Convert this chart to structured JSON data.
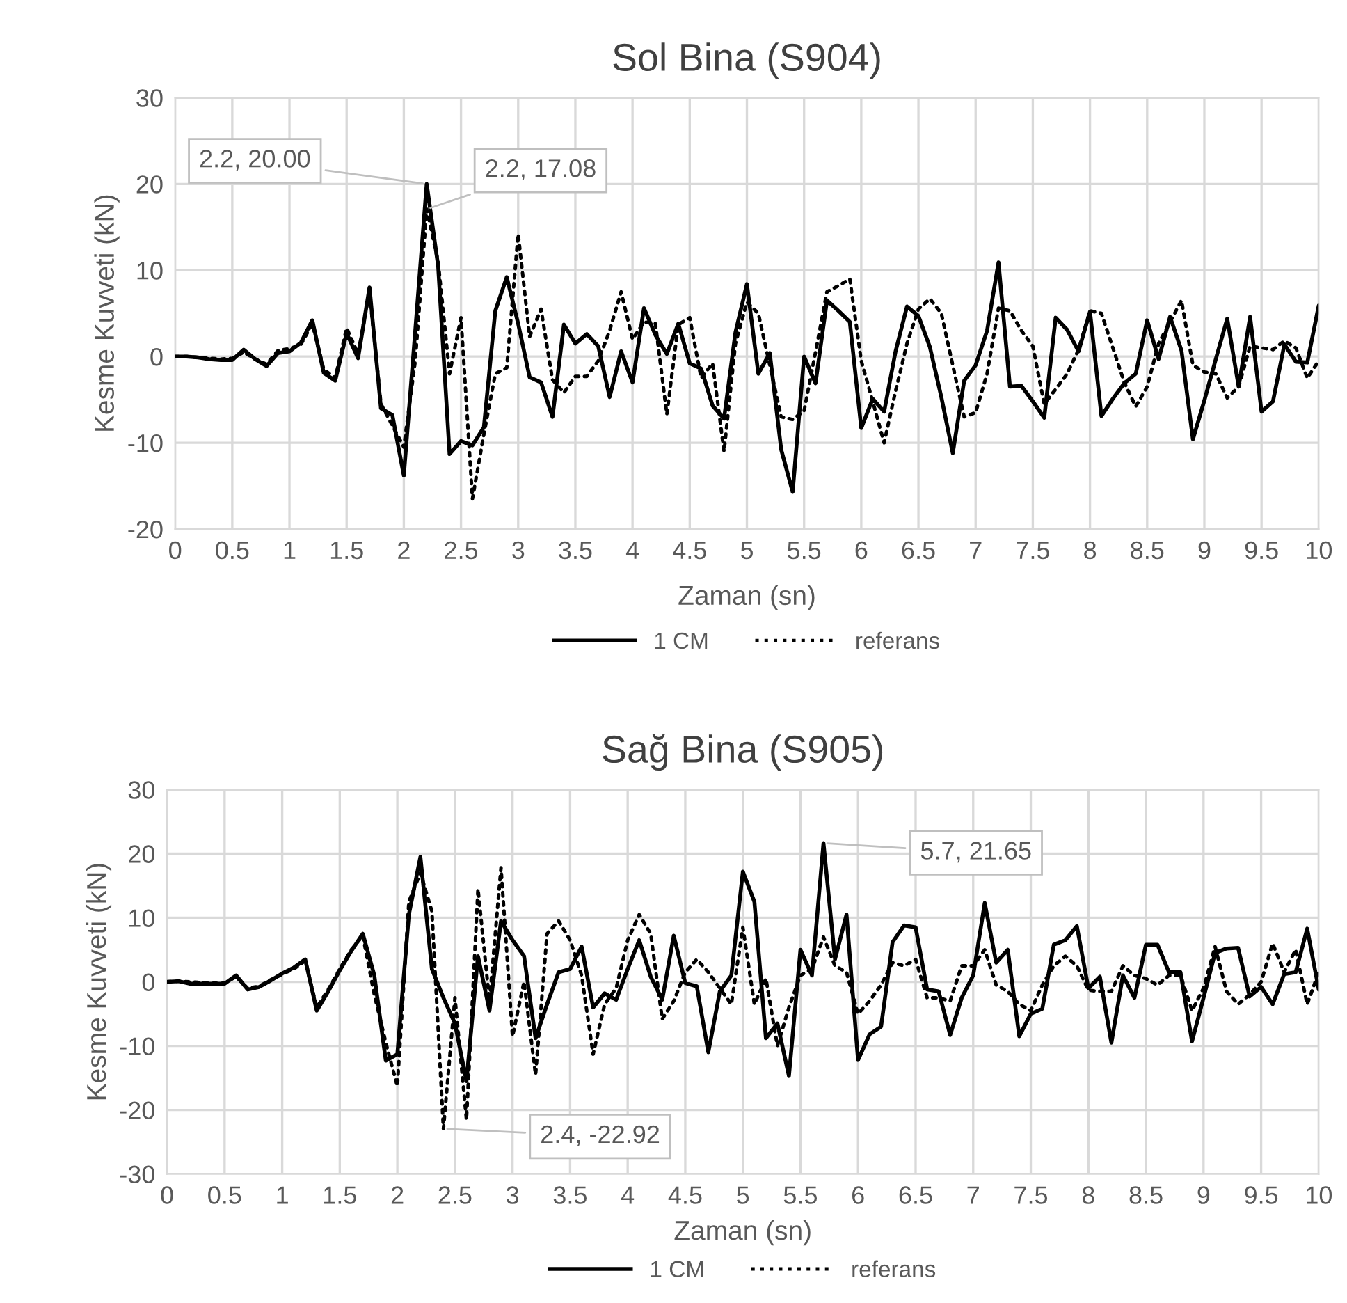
{
  "chart_data": [
    {
      "type": "line",
      "title": "Sol Bina (S904)",
      "xlabel": "Zaman (sn)",
      "ylabel": "Kesme Kuvveti (kN)",
      "x": [
        0,
        0.1,
        0.2,
        0.3,
        0.4,
        0.5,
        0.6,
        0.7,
        0.8,
        0.9,
        1,
        1.1,
        1.2,
        1.3,
        1.4,
        1.5,
        1.6,
        1.7,
        1.8,
        1.9,
        2,
        2.1,
        2.2,
        2.3,
        2.4,
        2.5,
        2.6,
        2.7,
        2.8,
        2.9,
        3,
        3.1,
        3.2,
        3.3,
        3.4,
        3.5,
        3.6,
        3.7,
        3.8,
        3.9,
        4,
        4.1,
        4.2,
        4.3,
        4.4,
        4.5,
        4.6,
        4.7,
        4.8,
        4.9,
        5,
        5.1,
        5.2,
        5.3,
        5.4,
        5.5,
        5.6,
        5.7,
        5.8,
        5.9,
        6,
        6.1,
        6.2,
        6.3,
        6.4,
        6.5,
        6.6,
        6.7,
        6.8,
        6.9,
        7,
        7.1,
        7.2,
        7.3,
        7.4,
        7.5,
        7.6,
        7.7,
        7.8,
        7.9,
        8,
        8.1,
        8.2,
        8.3,
        8.4,
        8.5,
        8.6,
        8.7,
        8.8,
        8.9,
        9,
        9.1,
        9.2,
        9.3,
        9.4,
        9.5,
        9.6,
        9.7,
        9.8,
        9.9,
        10
      ],
      "series": [
        {
          "name": "1 CM",
          "color": "#000000",
          "line_style": "solid",
          "values": [
            0,
            0,
            -0.1,
            -0.3,
            -0.4,
            -0.4,
            0.8,
            -0.3,
            -1.1,
            0.4,
            0.6,
            1.6,
            4.2,
            -1.9,
            -2.8,
            2.7,
            -0.2,
            8.0,
            -6.0,
            -6.8,
            -13.8,
            3,
            20.0,
            10.5,
            -11.3,
            -9.8,
            -10.3,
            -8.2,
            5.3,
            9.2,
            3.8,
            -2.4,
            -3.0,
            -7.0,
            3.7,
            1.5,
            2.6,
            1.2,
            -4.7,
            0.6,
            -3.0,
            5.6,
            2.5,
            0.3,
            3.8,
            -0.8,
            -1.4,
            -5.7,
            -7.2,
            2.8,
            8.4,
            -2.0,
            0.4,
            -10.8,
            -15.7,
            0,
            -3.1,
            6.5,
            5.3,
            4.0,
            -8.3,
            -4.9,
            -6.4,
            0.6,
            5.8,
            4.7,
            1.1,
            -4.7,
            -11.2,
            -2.8,
            -1.0,
            3.0,
            10.9,
            -3.5,
            -3.4,
            -5.2,
            -7.1,
            4.5,
            3.1,
            0.6,
            5.2,
            -6.9,
            -4.9,
            -3.1,
            -2.0,
            4.2,
            -0.3,
            4.6,
            0.7,
            -9.6,
            -5.1,
            -0.3,
            4.4,
            -3.5,
            4.6,
            -6.4,
            -5.2,
            1.4,
            -0.6,
            -0.7,
            5.9
          ]
        },
        {
          "name": "referans",
          "color": "#000000",
          "line_style": "dotted",
          "values": [
            0,
            0,
            -0.1,
            -0.2,
            -0.3,
            -0.2,
            0.5,
            -0.3,
            -0.9,
            0.7,
            0.9,
            1.4,
            3.8,
            -1.5,
            -2.5,
            3.3,
            0.3,
            7.5,
            -5.5,
            -8.0,
            -10.5,
            -0.5,
            17.08,
            11,
            -2,
            4.5,
            -16.5,
            -9,
            -2.0,
            -1.3,
            14.2,
            2.3,
            5.5,
            -2.7,
            -4.2,
            -2.3,
            -2.3,
            -0.5,
            3.0,
            7.5,
            2.0,
            4.0,
            3.8,
            -6.7,
            3.7,
            4.5,
            -2.5,
            -0.8,
            -11.0,
            1.5,
            6.3,
            5.0,
            -1.0,
            -7.0,
            -7.3,
            -6.3,
            0.5,
            7.5,
            8.2,
            9.0,
            -0.5,
            -5.2,
            -10.0,
            -4,
            1.5,
            5.5,
            6.7,
            5.0,
            -1.0,
            -7.0,
            -6.5,
            -2.0,
            5.6,
            5.3,
            3.0,
            1.2,
            -5.5,
            -3.8,
            -2.0,
            0.8,
            5.3,
            5.0,
            1.0,
            -3.0,
            -5.8,
            -3.5,
            1.5,
            4.0,
            6.5,
            -1.0,
            -1.8,
            -2.0,
            -4.8,
            -3.5,
            1.2,
            1.0,
            0.8,
            1.8,
            1.0,
            -2.5,
            -0.5
          ]
        }
      ],
      "xlim": [
        0,
        10
      ],
      "xticks": [
        0,
        0.5,
        1,
        1.5,
        2,
        2.5,
        3,
        3.5,
        4,
        4.5,
        5,
        5.5,
        6,
        6.5,
        7,
        7.5,
        8,
        8.5,
        9,
        9.5,
        10
      ],
      "ylim": [
        -20,
        30
      ],
      "yticks": [
        -20,
        -10,
        0,
        10,
        20,
        30
      ],
      "grid": true,
      "legend": "bottom",
      "marker": "none",
      "annotations": [
        {
          "text": "2.2, 20.00",
          "x": 2.2,
          "y": 20.0
        },
        {
          "text": "2.2, 17.08",
          "x": 2.2,
          "y": 17.08
        }
      ]
    },
    {
      "type": "line",
      "title": "Sağ Bina (S905)",
      "xlabel": "Zaman (sn)",
      "ylabel": "Kesme Kuvveti (kN)",
      "x": [
        0,
        0.1,
        0.2,
        0.3,
        0.4,
        0.5,
        0.6,
        0.7,
        0.8,
        0.9,
        1,
        1.1,
        1.2,
        1.3,
        1.4,
        1.5,
        1.6,
        1.7,
        1.8,
        1.9,
        2,
        2.1,
        2.2,
        2.3,
        2.4,
        2.5,
        2.6,
        2.7,
        2.8,
        2.9,
        3,
        3.1,
        3.2,
        3.3,
        3.4,
        3.5,
        3.6,
        3.7,
        3.8,
        3.9,
        4,
        4.1,
        4.2,
        4.3,
        4.4,
        4.5,
        4.6,
        4.7,
        4.8,
        4.9,
        5,
        5.1,
        5.2,
        5.3,
        5.4,
        5.5,
        5.6,
        5.7,
        5.8,
        5.9,
        6,
        6.1,
        6.2,
        6.3,
        6.4,
        6.5,
        6.6,
        6.7,
        6.8,
        6.9,
        7,
        7.1,
        7.2,
        7.3,
        7.4,
        7.5,
        7.6,
        7.7,
        7.8,
        7.9,
        8,
        8.1,
        8.2,
        8.3,
        8.4,
        8.5,
        8.6,
        8.7,
        8.8,
        8.9,
        9,
        9.1,
        9.2,
        9.3,
        9.4,
        9.5,
        9.6,
        9.7,
        9.8,
        9.9,
        10
      ],
      "series": [
        {
          "name": "1 CM",
          "color": "#000000",
          "line_style": "solid",
          "values": [
            0,
            0.1,
            -0.3,
            -0.3,
            -0.3,
            -0.3,
            1.0,
            -1.2,
            -0.8,
            0.2,
            1.3,
            2.2,
            3.5,
            -4.5,
            -1.5,
            1.8,
            4.8,
            7.5,
            1,
            -12.3,
            -11.3,
            10.5,
            19.5,
            2.0,
            -2.5,
            -6.5,
            -15.5,
            4.0,
            -4.5,
            9.5,
            6.5,
            4.0,
            -8.8,
            -3.5,
            1.5,
            2.0,
            5.5,
            -4.0,
            -1.8,
            -2.8,
            2.0,
            6.5,
            0.8,
            -2.8,
            7.2,
            -0.2,
            -0.7,
            -11.0,
            -1.5,
            1.0,
            17.2,
            12.5,
            -8.8,
            -6.5,
            -14.7,
            5.0,
            1.0,
            21.65,
            3.5,
            10.5,
            -12.2,
            -8.2,
            -7.0,
            6.2,
            8.8,
            8.5,
            -1.2,
            -1.5,
            -8.3,
            -2.5,
            1.0,
            12.3,
            3.0,
            5.0,
            -8.5,
            -5.0,
            -4.2,
            5.8,
            6.5,
            8.7,
            -1.0,
            0.8,
            -9.5,
            1.0,
            -2.5,
            5.8,
            5.8,
            1.5,
            1.5,
            -9.3,
            -2.5,
            4.5,
            5.2,
            5.3,
            -2.3,
            -0.8,
            -3.5,
            1.2,
            1.5,
            8.3,
            -1.2
          ]
        },
        {
          "name": "referans",
          "color": "#000000",
          "line_style": "dotted",
          "values": [
            0,
            0.1,
            0,
            -0.1,
            -0.2,
            -0.2,
            0.8,
            -1.0,
            -0.7,
            0.3,
            1.2,
            2.0,
            3.3,
            -4.0,
            -1.2,
            2.0,
            5.0,
            7.2,
            -2.0,
            -9.5,
            -16.3,
            12.5,
            17.0,
            11.0,
            -22.92,
            -2.5,
            -21.5,
            14.5,
            -3.0,
            17.8,
            -8.5,
            0.0,
            -14.5,
            7.5,
            9.5,
            6.5,
            1.0,
            -11.3,
            -3.5,
            -1.0,
            6.5,
            10.5,
            7.5,
            -5.8,
            -3.0,
            1.5,
            3.5,
            1.5,
            -1.0,
            -3.5,
            8.5,
            -3.5,
            0.5,
            -10.0,
            -4.0,
            1.0,
            2.0,
            7.0,
            2.5,
            1.5,
            -5.0,
            -3.0,
            -0.5,
            3.0,
            2.5,
            3.5,
            -2.5,
            -2.5,
            -3.0,
            2.5,
            2.5,
            5.0,
            -0.5,
            -1.5,
            -3.5,
            -4.5,
            -0.5,
            2.5,
            4.0,
            2.5,
            -1.3,
            -1.5,
            -1.5,
            2.5,
            1.0,
            0.5,
            -0.5,
            1.0,
            1.0,
            -4.5,
            -1.0,
            5.5,
            -1.5,
            -3.5,
            -2.0,
            0,
            6.0,
            1.5,
            5.0,
            -3.5,
            1.5
          ]
        }
      ],
      "xlim": [
        0,
        10
      ],
      "xticks": [
        0,
        0.5,
        1,
        1.5,
        2,
        2.5,
        3,
        3.5,
        4,
        4.5,
        5,
        5.5,
        6,
        6.5,
        7,
        7.5,
        8,
        8.5,
        9,
        9.5,
        10
      ],
      "ylim": [
        -30,
        30
      ],
      "yticks": [
        -30,
        -20,
        -10,
        0,
        10,
        20,
        30
      ],
      "grid": true,
      "legend": "bottom",
      "marker": "none",
      "annotations": [
        {
          "text": "2.4, -22.92",
          "x": 2.4,
          "y": -22.92
        },
        {
          "text": "5.7, 21.65",
          "x": 5.7,
          "y": 21.65
        }
      ]
    }
  ]
}
